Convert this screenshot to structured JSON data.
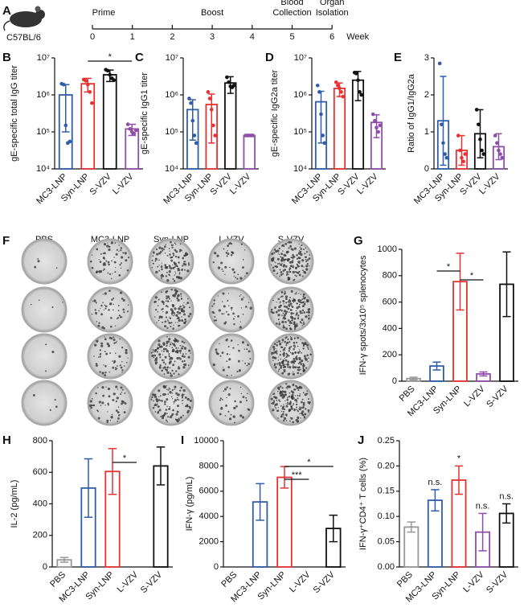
{
  "timeline": {
    "panel": "A",
    "strain": "C57BL/6",
    "weeks": [
      0,
      1,
      2,
      3,
      4,
      5,
      6
    ],
    "unit": "Week",
    "events": [
      {
        "label": [
          "Prime"
        ],
        "week": 0
      },
      {
        "label": [
          "Boost"
        ],
        "week": 3
      },
      {
        "label": [
          "Blood",
          "Collection"
        ],
        "week": 5
      },
      {
        "label": [
          "Organ",
          "Isolation"
        ],
        "week": 6
      }
    ]
  },
  "elispot": {
    "panel": "F",
    "columns": [
      "PBS",
      "MC3-LNP",
      "Syn-LNP",
      "L-VZV",
      "S-VZV"
    ]
  },
  "chart_data": [
    {
      "type": "bar",
      "panel": "B",
      "ylabel": "gE-specific total IgG titer",
      "log": true,
      "categories": [
        "MC3-LNP",
        "Syn-LNP",
        "S-VZV",
        "L-VZV"
      ],
      "colors": [
        "#2f5da8",
        "#e53333",
        "#111111",
        "#8e4fa8"
      ],
      "values": [
        1000000,
        2000000,
        3500000,
        120000
      ],
      "errors": [
        900000,
        800000,
        1200000,
        40000
      ],
      "points": [
        [
          2000000,
          1900000,
          150000,
          50000,
          55000
        ],
        [
          2600000,
          2400000,
          1900000,
          1200000,
          600000
        ],
        [
          4800000,
          4500000,
          3500000,
          2800000,
          2500000
        ],
        [
          160000,
          120000,
          100000,
          90000,
          110000
        ]
      ],
      "ylim": [
        10000,
        10000000
      ],
      "yticks": [
        {
          "value": 10000,
          "label": "10⁴"
        },
        {
          "value": 100000,
          "label": "10⁵"
        },
        {
          "value": 1000000,
          "label": "10⁶"
        },
        {
          "value": 10000000,
          "label": "10⁷"
        }
      ],
      "annotations": [
        {
          "text": "*",
          "from": "Syn-LNP",
          "to": "L-VZV"
        }
      ]
    },
    {
      "type": "bar",
      "panel": "C",
      "ylabel": "gE-specific IgG1 titer",
      "log": true,
      "categories": [
        "MC3-LNP",
        "Syn-LNP",
        "S-VZV",
        "L-VZV"
      ],
      "colors": [
        "#2f5da8",
        "#e53333",
        "#111111",
        "#8e4fa8"
      ],
      "values": [
        400000,
        550000,
        2100000,
        80000
      ],
      "errors": [
        340000,
        500000,
        1000000,
        0
      ],
      "points": [
        [
          800000,
          600000,
          200000,
          80000,
          50000
        ],
        [
          1200000,
          800000,
          400000,
          150000,
          80000
        ],
        [
          3000000,
          2200000,
          1700000,
          1600000,
          1800000
        ],
        [
          80000,
          80000,
          80000,
          80000,
          80000
        ]
      ],
      "ylim": [
        10000,
        10000000
      ],
      "yticks": [
        {
          "value": 10000,
          "label": "10⁴"
        },
        {
          "value": 100000,
          "label": "10⁵"
        },
        {
          "value": 1000000,
          "label": "10⁶"
        },
        {
          "value": 10000000,
          "label": "10⁷"
        }
      ]
    },
    {
      "type": "bar",
      "panel": "D",
      "ylabel": "gE-specific IgG2a titer",
      "log": true,
      "categories": [
        "MC3-LNP",
        "Syn-LNP",
        "S-VZV",
        "L-VZV"
      ],
      "colors": [
        "#2f5da8",
        "#e53333",
        "#111111",
        "#8e4fa8"
      ],
      "values": [
        650000,
        1500000,
        2500000,
        180000
      ],
      "errors": [
        600000,
        600000,
        1800000,
        110000
      ],
      "points": [
        [
          1800000,
          1200000,
          300000,
          80000,
          50000
        ],
        [
          2200000,
          1800000,
          1500000,
          1200000,
          900000
        ],
        [
          4000000,
          3800000,
          2500000,
          1200000,
          1000000
        ],
        [
          300000,
          200000,
          130000,
          100000,
          150000
        ]
      ],
      "ylim": [
        10000,
        10000000
      ],
      "yticks": [
        {
          "value": 10000,
          "label": "10⁴"
        },
        {
          "value": 100000,
          "label": "10⁵"
        },
        {
          "value": 1000000,
          "label": "10⁶"
        },
        {
          "value": 10000000,
          "label": "10⁷"
        }
      ]
    },
    {
      "type": "bar",
      "panel": "E",
      "ylabel": "Ratio of IgG1/IgG2a",
      "categories": [
        "MC3-LNP",
        "Syn-LNP",
        "S-VZV",
        "L-VZV"
      ],
      "colors": [
        "#2f5da8",
        "#e53333",
        "#111111",
        "#8e4fa8"
      ],
      "values": [
        1.3,
        0.5,
        0.95,
        0.6
      ],
      "errors": [
        1.2,
        0.4,
        0.65,
        0.35
      ],
      "points": [
        [
          2.85,
          1.2,
          0.7,
          0.4,
          0.3
        ],
        [
          0.9,
          0.5,
          0.3,
          0.2,
          0.4
        ],
        [
          1.6,
          1.2,
          0.8,
          0.5,
          0.4
        ],
        [
          0.9,
          0.7,
          0.5,
          0.4,
          0.3
        ]
      ],
      "ylim": [
        0,
        3
      ],
      "yticks": [
        0,
        1,
        2,
        3
      ]
    },
    {
      "type": "bar",
      "panel": "G",
      "ylabel": "IFN-γ spots/3x10⁵ splenocytes",
      "categories": [
        "PBS",
        "MC3-LNP",
        "Syn-LNP",
        "L-VZV",
        "S-VZV"
      ],
      "colors": [
        "#999999",
        "#2f5da8",
        "#e53333",
        "#8e4fa8",
        "#111111"
      ],
      "values": [
        20,
        115,
        755,
        55,
        735
      ],
      "errors": [
        10,
        30,
        215,
        15,
        245
      ],
      "ylim": [
        0,
        1000
      ],
      "yticks": [
        0,
        200,
        400,
        600,
        800,
        1000
      ],
      "annotations": [
        {
          "text": "*",
          "from": "MC3-LNP",
          "to": "Syn-LNP"
        },
        {
          "text": "*",
          "from": "Syn-LNP",
          "to": "L-VZV"
        }
      ]
    },
    {
      "type": "bar",
      "panel": "H",
      "ylabel": "IL-2 (pg/mL)",
      "categories": [
        "PBS",
        "MC3-LNP",
        "Syn-LNP",
        "L-VZV",
        "S-VZV"
      ],
      "colors": [
        "#999999",
        "#2f5da8",
        "#e53333",
        "#8e4fa8",
        "#111111"
      ],
      "values": [
        45,
        500,
        605,
        0,
        640
      ],
      "errors": [
        15,
        185,
        145,
        0,
        120
      ],
      "ylim": [
        0,
        800
      ],
      "yticks": [
        0,
        200,
        400,
        600,
        800
      ],
      "annotations": [
        {
          "text": "*",
          "from": "Syn-LNP",
          "to": "L-VZV"
        }
      ]
    },
    {
      "type": "bar",
      "panel": "I",
      "ylabel": "IFN-γ (pg/mL)",
      "categories": [
        "PBS",
        "MC3-LNP",
        "Syn-LNP",
        "L-VZV",
        "S-VZV"
      ],
      "colors": [
        "#999999",
        "#2f5da8",
        "#e53333",
        "#8e4fa8",
        "#111111"
      ],
      "values": [
        0,
        5150,
        7100,
        0,
        3050
      ],
      "errors": [
        0,
        1450,
        850,
        0,
        1050
      ],
      "ylim": [
        0,
        10000
      ],
      "yticks": [
        0,
        2000,
        4000,
        6000,
        8000,
        10000
      ],
      "annotations": [
        {
          "text": "*",
          "from": "Syn-LNP",
          "to": "S-VZV"
        },
        {
          "text": "***",
          "from": "Syn-LNP",
          "to": "L-VZV"
        }
      ]
    },
    {
      "type": "bar",
      "panel": "J",
      "ylabel": "IFN-γ⁺CD4⁺ T cells (%)",
      "categories": [
        "PBS",
        "MC3-LNP",
        "Syn-LNP",
        "L-VZV",
        "S-VZV"
      ],
      "colors": [
        "#999999",
        "#2f5da8",
        "#e53333",
        "#8e4fa8",
        "#111111"
      ],
      "values": [
        0.079,
        0.132,
        0.172,
        0.069,
        0.106
      ],
      "errors": [
        0.01,
        0.021,
        0.028,
        0.037,
        0.019
      ],
      "bar_labels": [
        null,
        "n.s.",
        "*",
        "n.s.",
        "n.s."
      ],
      "ylim": [
        0,
        0.25
      ],
      "yticks": [
        {
          "value": 0,
          "label": "0.00"
        },
        {
          "value": 0.05,
          "label": "0.05"
        },
        {
          "value": 0.1,
          "label": "0.10"
        },
        {
          "value": 0.15,
          "label": "0.15"
        },
        {
          "value": 0.2,
          "label": "0.20"
        },
        {
          "value": 0.25,
          "label": "0.25"
        }
      ]
    }
  ]
}
